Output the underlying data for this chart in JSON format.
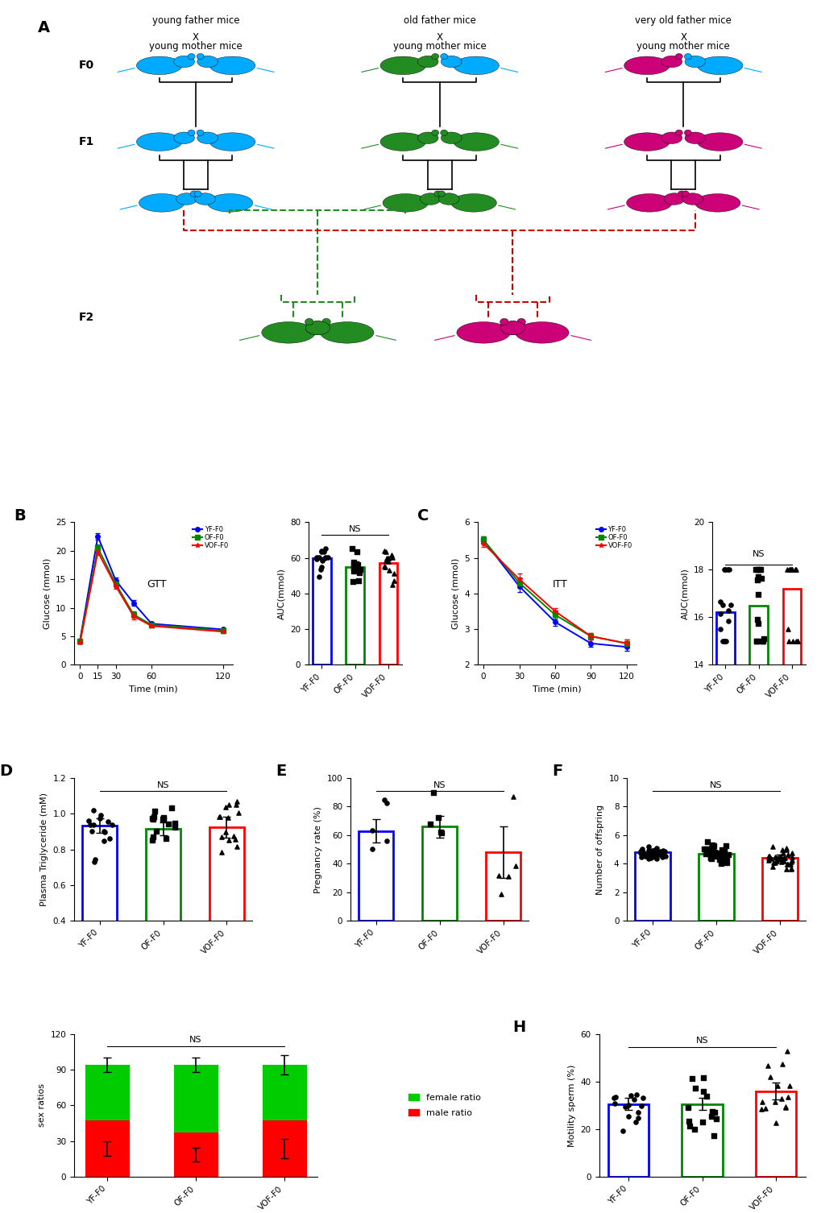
{
  "panel_A": {
    "col_titles": [
      "young father mice",
      "old father mice",
      "very old father mice"
    ],
    "col_colors": [
      "#00AAFF",
      "#228B22",
      "#CC0077"
    ],
    "mother_color": "#00AAFF",
    "row_labels": [
      "F0",
      "F1",
      "F2"
    ]
  },
  "panel_B_line": {
    "title": "GTT",
    "xlabel": "Time (min)",
    "ylabel": "Glucose (mmol)",
    "xvals": [
      0,
      15,
      30,
      45,
      60,
      120
    ],
    "YF": [
      4.2,
      22.5,
      14.8,
      10.8,
      7.2,
      6.2
    ],
    "OF": [
      4.2,
      20.5,
      14.2,
      8.8,
      7.0,
      6.0
    ],
    "VOF": [
      3.8,
      19.8,
      13.8,
      8.5,
      6.8,
      5.8
    ],
    "YF_err": [
      0.15,
      0.6,
      0.5,
      0.5,
      0.3,
      0.25
    ],
    "OF_err": [
      0.15,
      0.6,
      0.6,
      0.5,
      0.3,
      0.25
    ],
    "VOF_err": [
      0.15,
      0.6,
      0.5,
      0.5,
      0.3,
      0.25
    ],
    "ylim": [
      0,
      25
    ],
    "yticks": [
      0,
      5,
      10,
      15,
      20,
      25
    ],
    "xticks": [
      0,
      15,
      30,
      60,
      120
    ]
  },
  "panel_B_bar": {
    "ylabel": "AUC(mmol)",
    "categories": [
      "YF-F0",
      "OF-F0",
      "VOF-F0"
    ],
    "bar_colors": [
      "#0000FF",
      "#008800",
      "#FF0000"
    ],
    "means": [
      60.0,
      55.0,
      57.0
    ],
    "ylim": [
      0,
      80
    ],
    "yticks": [
      0,
      20,
      40,
      60,
      80
    ]
  },
  "panel_C_line": {
    "title": "ITT",
    "xlabel": "Time (min)",
    "ylabel": "Glucose (mmol)",
    "xvals": [
      0,
      30,
      60,
      90,
      120
    ],
    "YF": [
      5.5,
      4.2,
      3.2,
      2.6,
      2.5
    ],
    "OF": [
      5.5,
      4.3,
      3.4,
      2.8,
      2.6
    ],
    "VOF": [
      5.4,
      4.4,
      3.5,
      2.8,
      2.6
    ],
    "YF_err": [
      0.1,
      0.15,
      0.1,
      0.1,
      0.1
    ],
    "OF_err": [
      0.1,
      0.15,
      0.1,
      0.1,
      0.1
    ],
    "VOF_err": [
      0.1,
      0.15,
      0.1,
      0.1,
      0.1
    ],
    "ylim": [
      2,
      6
    ],
    "yticks": [
      2,
      3,
      4,
      5,
      6
    ],
    "xticks": [
      0,
      30,
      60,
      90,
      120
    ]
  },
  "panel_C_bar": {
    "ylabel": "AUC(mmol)",
    "categories": [
      "YF-F0",
      "OF-F0",
      "VOF-F0"
    ],
    "bar_colors": [
      "#0000FF",
      "#008800",
      "#FF0000"
    ],
    "means": [
      16.2,
      16.5,
      17.2
    ],
    "ylim": [
      14,
      20
    ],
    "yticks": [
      14,
      16,
      18,
      20
    ]
  },
  "panel_D": {
    "ylabel": "Plasma Triglyceride (mM)",
    "categories": [
      "YF-F0",
      "OF-F0",
      "VOF-F0"
    ],
    "bar_colors": [
      "#0000FF",
      "#008800",
      "#FF0000"
    ],
    "means": [
      0.935,
      0.915,
      0.925
    ],
    "errs": [
      0.04,
      0.035,
      0.06
    ],
    "ylim": [
      0.4,
      1.2
    ],
    "yticks": [
      0.4,
      0.6,
      0.8,
      1.0,
      1.2
    ],
    "scatter_n": 15,
    "scatter_spread": [
      0.08,
      0.06,
      0.08
    ]
  },
  "panel_E": {
    "ylabel": "Pregnancy rate (%)",
    "categories": [
      "YF-F0",
      "OF-F0",
      "VOF-F0"
    ],
    "bar_colors": [
      "#0000FF",
      "#008800",
      "#FF0000"
    ],
    "means": [
      63.0,
      66.0,
      48.0
    ],
    "errs": [
      8.0,
      7.5,
      18.0
    ],
    "ylim": [
      0,
      100
    ],
    "yticks": [
      0,
      20,
      40,
      60,
      80,
      100
    ],
    "scatter_n": 5
  },
  "panel_F": {
    "ylabel": "Number of offspring",
    "categories": [
      "YF-F0",
      "OF-F0",
      "VOF-F0"
    ],
    "bar_colors": [
      "#0000FF",
      "#008800",
      "#FF0000"
    ],
    "means": [
      4.8,
      4.7,
      4.4
    ],
    "errs": [
      0.18,
      0.18,
      0.22
    ],
    "ylim": [
      0,
      10
    ],
    "yticks": [
      0,
      2,
      4,
      6,
      8,
      10
    ],
    "scatter_n": 35
  },
  "panel_G": {
    "ylabel": "sex ratios",
    "categories": [
      "YF-F0",
      "OF-F0",
      "VOF-F0"
    ],
    "female_means": [
      47.0,
      57.0,
      47.0
    ],
    "male_means": [
      47.0,
      37.0,
      47.0
    ],
    "total_means": [
      94.0,
      94.0,
      94.0
    ],
    "female_errs": [
      6.0,
      6.0,
      8.0
    ],
    "male_errs": [
      6.0,
      6.0,
      8.0
    ],
    "ylim": [
      0,
      120
    ],
    "yticks": [
      0,
      30,
      60,
      90,
      120
    ],
    "female_color": "#00CC00",
    "male_color": "#FF0000"
  },
  "panel_H": {
    "ylabel": "Motility sperm (%)",
    "categories": [
      "YF-F0",
      "OF-F0",
      "VOF-F0"
    ],
    "bar_colors": [
      "#0000FF",
      "#008800",
      "#FF0000"
    ],
    "means": [
      30.5,
      30.5,
      36.0
    ],
    "errs": [
      2.5,
      2.5,
      3.5
    ],
    "ylim": [
      0,
      60
    ],
    "yticks": [
      0,
      20,
      40,
      60
    ],
    "scatter_n": 15
  },
  "line_colors": {
    "YF": "#0000FF",
    "OF": "#008800",
    "VOF": "#FF0000"
  },
  "markers": {
    "YF": "o",
    "OF": "s",
    "VOF": "*"
  },
  "scatter_markers": [
    "o",
    "s",
    "^"
  ],
  "bg_color": "#FFFFFF"
}
